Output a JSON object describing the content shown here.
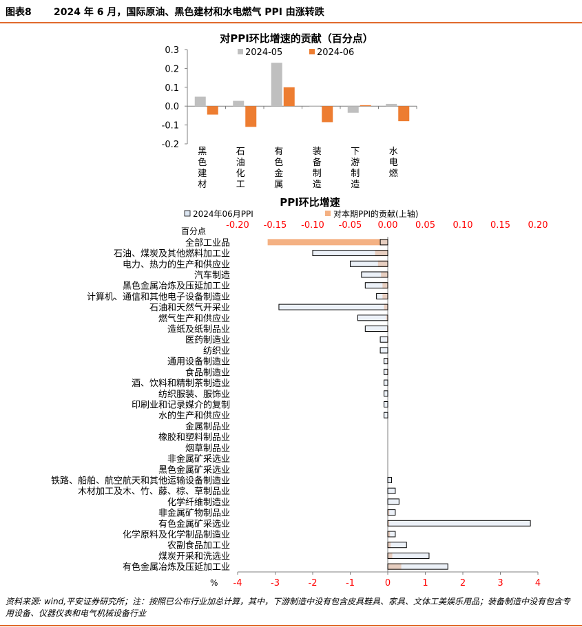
{
  "header": {
    "label": "图表8",
    "title": "2024 年 6 月，国际原油、黑色建材和水电燃气 PPI 由涨转跌"
  },
  "footer": {
    "note": "资料来源: wind,平安证券研究所；注：按照已公布行业加总计算，其中，下游制造中没有包含皮具鞋具、家具、文体工美娱乐用品；装备制造中没有包含专用设备、仪器仪表和电气机械设备行业"
  },
  "chart_data": [
    {
      "type": "bar",
      "title": "对PPI环比增速的贡献（百分点）",
      "categories": [
        "黑色建材",
        "石油化工",
        "有色金属",
        "装备制造",
        "下游制造",
        "水电燃"
      ],
      "series": [
        {
          "name": "2024-05",
          "color": "#bfbfbf",
          "values": [
            0.05,
            0.028,
            0.23,
            -0.002,
            -0.035,
            0.012
          ]
        },
        {
          "name": "2024-06",
          "color": "#ed7d31",
          "values": [
            -0.045,
            -0.11,
            0.1,
            -0.085,
            0.005,
            -0.08
          ]
        }
      ],
      "ylim": [
        -0.2,
        0.3
      ],
      "yticks": [
        "0.3",
        "0.2",
        "0.1",
        "0.0",
        "-0.1",
        "-0.2"
      ],
      "legend": "top"
    },
    {
      "type": "bar",
      "orientation": "horizontal",
      "title": "PPI环比增速",
      "unit_top": "百分点",
      "unit_bottom": "%",
      "categories": [
        "全部工业品",
        "石油、煤炭及其他燃料加工业",
        "电力、热力的生产和供应业",
        "汽车制造",
        "黑色金属冶炼及压延加工业",
        "计算机、通信和其他电子设备制造业",
        "石油和天然气开采业",
        "燃气生产和供应业",
        "造纸及纸制品业",
        "医药制造业",
        "纺织业",
        "通用设备制造业",
        "食品制造业",
        "酒、饮料和精制茶制造业",
        "纺织服装、服饰业",
        "印刷业和记录媒介的复制",
        "水的生产和供应业",
        "金属制品业",
        "橡胶和塑料制品业",
        "烟草制品业",
        "非金属矿采选业",
        "黑色金属矿采选业",
        "铁路、船舶、航空航天和其他运输设备制造业",
        "木材加工及木、竹、藤、棕、草制品业",
        "化学纤维制造业",
        "非金属矿物制品业",
        "有色金属矿采选业",
        "化学原料及化学制品制造业",
        "农副食品加工业",
        "煤炭开采和洗选业",
        "有色金属冶炼及压延加工业"
      ],
      "series": [
        {
          "name": "2024年06月PPI",
          "axis": "bottom",
          "color": "#dce6f2",
          "values": [
            -0.2,
            -2.0,
            -1.0,
            -0.7,
            -0.6,
            -0.3,
            -2.9,
            -0.8,
            -0.6,
            -0.2,
            -0.2,
            -0.1,
            -0.1,
            -0.1,
            -0.1,
            -0.1,
            -0.1,
            0.0,
            0.0,
            0.0,
            0.0,
            0.0,
            0.1,
            0.2,
            0.3,
            0.2,
            3.8,
            0.2,
            0.5,
            1.1,
            1.6
          ]
        },
        {
          "name": "对本期PPI的贡献(上轴)",
          "axis": "top",
          "color": "#f4b183",
          "values": [
            -0.16,
            -0.017,
            -0.013,
            -0.009,
            -0.007,
            -0.007,
            -0.005,
            -0.002,
            -0.001,
            -0.001,
            0.0,
            -0.001,
            -0.001,
            0.0,
            0.0,
            0.0,
            0.0,
            0.0,
            0.0,
            0.0,
            0.0,
            0.0,
            0.0,
            0.0,
            0.0,
            0.002,
            0.002,
            0.003,
            0.004,
            0.006,
            0.018
          ]
        }
      ],
      "xlim_top": [
        -0.2,
        0.2
      ],
      "xticks_top": [
        "-0.20",
        "-0.15",
        "-0.10",
        "-0.05",
        "0.00",
        "0.05",
        "0.10",
        "0.15",
        "0.20"
      ],
      "xlim_bottom": [
        -4,
        4
      ],
      "xticks_bottom": [
        "-4",
        "-3",
        "-2",
        "-1",
        "0",
        "1",
        "2",
        "3",
        "4"
      ],
      "legend": "top"
    }
  ]
}
